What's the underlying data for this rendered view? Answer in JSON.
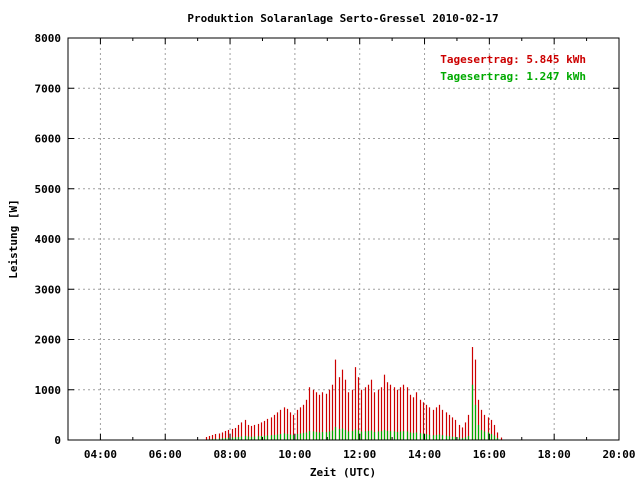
{
  "chart_data": {
    "type": "bar",
    "title": "Produktion Solaranlage Serto-Gressel 2010-02-17",
    "xlabel": "Zeit (UTC)",
    "ylabel": "Leistung [W]",
    "xlim": [
      3.0,
      20.0
    ],
    "ylim": [
      0,
      8000
    ],
    "grid": true,
    "x_ticks": [
      4,
      6,
      8,
      10,
      12,
      14,
      16,
      18,
      20
    ],
    "x_tick_labels": [
      "04:00",
      "06:00",
      "08:00",
      "10:00",
      "12:00",
      "14:00",
      "16:00",
      "18:00",
      "20:00"
    ],
    "y_ticks": [
      0,
      1000,
      2000,
      3000,
      4000,
      5000,
      6000,
      7000,
      8000
    ],
    "y_tick_labels": [
      "0",
      "1000",
      "2000",
      "3000",
      "4000",
      "5000",
      "6000",
      "7000",
      "8000"
    ],
    "annotations": [
      {
        "text": "Tagesertrag: 5.845 kWh",
        "color": "#cc0000"
      },
      {
        "text": "Tagesertrag: 1.247 kWh",
        "color": "#00aa00"
      }
    ],
    "x": [
      7.25,
      7.35,
      7.45,
      7.55,
      7.65,
      7.75,
      7.85,
      7.95,
      8.05,
      8.15,
      8.25,
      8.35,
      8.45,
      8.55,
      8.65,
      8.75,
      8.85,
      8.95,
      9.05,
      9.15,
      9.25,
      9.35,
      9.45,
      9.55,
      9.65,
      9.75,
      9.85,
      9.95,
      10.05,
      10.15,
      10.25,
      10.35,
      10.45,
      10.55,
      10.65,
      10.75,
      10.85,
      10.95,
      11.05,
      11.15,
      11.25,
      11.35,
      11.45,
      11.55,
      11.65,
      11.75,
      11.85,
      11.95,
      12.05,
      12.15,
      12.25,
      12.35,
      12.45,
      12.55,
      12.65,
      12.75,
      12.85,
      12.95,
      13.05,
      13.15,
      13.25,
      13.35,
      13.45,
      13.55,
      13.65,
      13.75,
      13.85,
      13.95,
      14.05,
      14.15,
      14.25,
      14.35,
      14.45,
      14.55,
      14.65,
      14.75,
      14.85,
      14.95,
      15.05,
      15.15,
      15.25,
      15.35,
      15.45,
      15.55,
      15.65,
      15.75,
      15.85,
      15.95,
      16.05,
      16.15,
      16.25,
      16.35
    ],
    "series": [
      {
        "color": "#cc0000",
        "values": [
          60,
          80,
          100,
          120,
          130,
          150,
          180,
          200,
          220,
          240,
          300,
          350,
          400,
          300,
          280,
          300,
          320,
          350,
          380,
          420,
          450,
          500,
          550,
          600,
          650,
          620,
          550,
          500,
          600,
          650,
          700,
          800,
          1050,
          1000,
          950,
          900,
          950,
          920,
          1000,
          1100,
          1600,
          1250,
          1400,
          1200,
          950,
          1000,
          1450,
          1250,
          1000,
          1050,
          1100,
          1200,
          950,
          1000,
          1050,
          1300,
          1150,
          1100,
          1050,
          1000,
          1050,
          1100,
          1050,
          900,
          850,
          950,
          800,
          750,
          700,
          650,
          600,
          650,
          700,
          600,
          550,
          500,
          450,
          400,
          300,
          250,
          350,
          500,
          1850,
          1600,
          800,
          600,
          500,
          450,
          400,
          300,
          150,
          50
        ]
      },
      {
        "color": "#00aa00",
        "values": [
          10,
          15,
          20,
          25,
          30,
          35,
          40,
          45,
          50,
          55,
          60,
          70,
          80,
          70,
          65,
          70,
          75,
          80,
          85,
          90,
          95,
          100,
          110,
          120,
          130,
          120,
          110,
          100,
          120,
          130,
          140,
          150,
          180,
          170,
          160,
          150,
          160,
          155,
          170,
          190,
          260,
          220,
          230,
          200,
          170,
          180,
          210,
          190,
          170,
          175,
          180,
          190,
          160,
          170,
          175,
          200,
          180,
          175,
          170,
          160,
          170,
          175,
          170,
          150,
          140,
          150,
          135,
          125,
          115,
          105,
          95,
          100,
          110,
          95,
          85,
          75,
          65,
          60,
          50,
          40,
          55,
          80,
          1100,
          700,
          300,
          200,
          170,
          150,
          120,
          90,
          40,
          10
        ]
      }
    ]
  }
}
